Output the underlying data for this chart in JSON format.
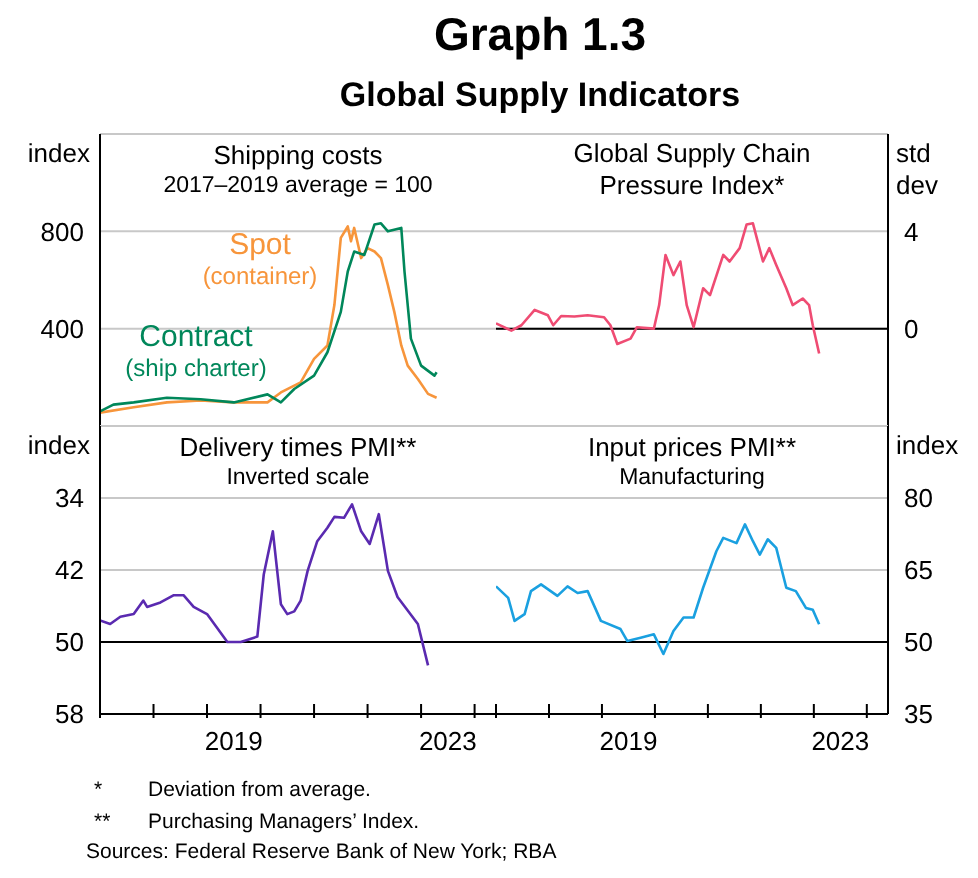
{
  "chart_data": [
    {
      "type": "other",
      "title": "Graph 1.3",
      "subtitle": "Global Supply Indicators",
      "annotations": [
        "* Deviation from average.",
        "** Purchasing Managers’ Index.",
        "Sources: Federal Reserve Bank of New York; RBA"
      ]
    },
    {
      "type": "line",
      "title": "Shipping costs",
      "subtitle": "2017–2019 average = 100",
      "ylabel": "index",
      "xlim": [
        2017,
        2024.4
      ],
      "ylim": [
        0,
        1200
      ],
      "yticks": [
        400,
        800
      ],
      "grid": "y",
      "tick_labels": "y",
      "series": [
        {
          "name": "Spot (container)",
          "color": "#f7953b",
          "x": [
            2017,
            2017.63,
            2018.25,
            2018.88,
            2019.5,
            2020.13,
            2020.38,
            2020.75,
            2021,
            2021.25,
            2021.38,
            2021.5,
            2021.63,
            2021.69,
            2021.75,
            2021.88,
            2022,
            2022.13,
            2022.25,
            2022.38,
            2022.5,
            2022.63,
            2022.75,
            2022.94,
            2023.13,
            2023.29
          ],
          "values": [
            55,
            77,
            97,
            105,
            97,
            97,
            138,
            179,
            276,
            331,
            497,
            773,
            820,
            759,
            814,
            690,
            731,
            717,
            690,
            579,
            469,
            331,
            248,
            193,
            132,
            116
          ]
        },
        {
          "name": "Contract (ship charter)",
          "color": "#00875a",
          "x": [
            2017,
            2017.25,
            2017.63,
            2018.25,
            2018.88,
            2019.5,
            2020.13,
            2020.38,
            2020.63,
            2021,
            2021.25,
            2021.5,
            2021.63,
            2021.75,
            2021.94,
            2022.13,
            2022.25,
            2022.38,
            2022.63,
            2022.69,
            2022.81,
            2023,
            2023.25,
            2023.29
          ],
          "values": [
            60,
            88,
            97,
            116,
            110,
            97,
            130,
            97,
            152,
            207,
            303,
            469,
            635,
            717,
            703,
            828,
            833,
            800,
            814,
            635,
            359,
            248,
            207,
            221
          ]
        }
      ]
    },
    {
      "type": "line",
      "title": "Global Supply Chain Pressure Index*",
      "ylabel": "std dev",
      "xlim": [
        2017,
        2024.4
      ],
      "ylim": [
        -4,
        8
      ],
      "yticks": [
        0,
        4
      ],
      "grid": "y",
      "tick_labels": "y",
      "ref_lines": [
        {
          "axis": "y",
          "value": 0,
          "color": "#000000"
        }
      ],
      "series": [
        {
          "color": "#ef4c73",
          "x": [
            2017,
            2017.29,
            2017.48,
            2017.73,
            2017.98,
            2018.08,
            2018.23,
            2018.48,
            2018.73,
            2019.04,
            2019.16,
            2019.29,
            2019.54,
            2019.66,
            2019.98,
            2020.08,
            2020.2,
            2020.35,
            2020.48,
            2020.6,
            2020.73,
            2020.91,
            2021.04,
            2021.29,
            2021.41,
            2021.6,
            2021.73,
            2021.85,
            2022.04,
            2022.16,
            2022.29,
            2022.48,
            2022.6,
            2022.79,
            2022.91,
            2022.98,
            2023.1
          ],
          "values": [
            0.22,
            -0.08,
            0.14,
            0.77,
            0.55,
            0.14,
            0.52,
            0.5,
            0.55,
            0.47,
            0.14,
            -0.63,
            -0.41,
            0.06,
            0,
            0.97,
            3.03,
            2.2,
            2.76,
            0.97,
            0.06,
            1.66,
            1.38,
            3.03,
            2.76,
            3.31,
            4.28,
            4.33,
            2.76,
            3.31,
            2.62,
            1.66,
            0.97,
            1.24,
            0.97,
            0.14,
            -1.02
          ]
        }
      ]
    },
    {
      "type": "line",
      "title": "Delivery times PMI**",
      "subtitle": "Inverted scale",
      "ylabel": "index",
      "xlim": [
        2017,
        2024.4
      ],
      "xticks": [
        {
          "value": 2017,
          "label": null
        },
        {
          "value": 2018,
          "label": null
        },
        {
          "value": 2019,
          "label": null
        },
        {
          "value": 2019.5,
          "label": "2019"
        },
        {
          "value": 2020,
          "label": null
        },
        {
          "value": 2021,
          "label": null
        },
        {
          "value": 2022,
          "label": null
        },
        {
          "value": 2023,
          "label": null
        },
        {
          "value": 2023.5,
          "label": "2023"
        },
        {
          "value": 2024,
          "label": null
        }
      ],
      "ylim": [
        58,
        26
      ],
      "yticks": [
        34,
        42,
        50,
        58
      ],
      "grid": "y",
      "ref_lines": [
        {
          "axis": "y",
          "value": 50,
          "color": "#000000"
        }
      ],
      "series": [
        {
          "color": "#5a2ab0",
          "x": [
            2017,
            2017.19,
            2017.38,
            2017.63,
            2017.81,
            2017.88,
            2018.13,
            2018.38,
            2018.56,
            2018.75,
            2019,
            2019.38,
            2019.63,
            2019.94,
            2020.06,
            2020.23,
            2020.38,
            2020.5,
            2020.63,
            2020.75,
            2020.88,
            2021.06,
            2021.25,
            2021.38,
            2021.56,
            2021.71,
            2021.88,
            2022.04,
            2022.21,
            2022.38,
            2022.56,
            2022.75,
            2022.94,
            2023.13
          ],
          "values": [
            47.6,
            48,
            47.2,
            46.9,
            45.4,
            46.1,
            45.6,
            44.8,
            44.8,
            46.1,
            46.9,
            50,
            50,
            49.4,
            42.5,
            37.7,
            45.8,
            46.9,
            46.6,
            45.4,
            42.1,
            38.8,
            37.3,
            36.1,
            36.2,
            34.7,
            37.7,
            39.1,
            35.8,
            42.1,
            45,
            46.5,
            48,
            52.6
          ]
        }
      ]
    },
    {
      "type": "line",
      "title": "Input prices PMI**",
      "subtitle": "Manufacturing",
      "ylabel": "index",
      "xlim": [
        2017,
        2024.4
      ],
      "xticks": [
        {
          "value": 2017,
          "label": null
        },
        {
          "value": 2018,
          "label": null
        },
        {
          "value": 2019,
          "label": null
        },
        {
          "value": 2019.5,
          "label": "2019"
        },
        {
          "value": 2020,
          "label": null
        },
        {
          "value": 2021,
          "label": null
        },
        {
          "value": 2022,
          "label": null
        },
        {
          "value": 2023,
          "label": null
        },
        {
          "value": 2023.5,
          "label": "2023"
        },
        {
          "value": 2024,
          "label": null
        }
      ],
      "ylim": [
        35,
        95
      ],
      "yticks": [
        35,
        50,
        65,
        80
      ],
      "grid": "y",
      "ref_lines": [
        {
          "axis": "y",
          "value": 50,
          "color": "#000000"
        }
      ],
      "series": [
        {
          "color": "#1aa0e0",
          "x": [
            2017,
            2017.23,
            2017.35,
            2017.54,
            2017.66,
            2017.85,
            2018.16,
            2018.35,
            2018.54,
            2018.73,
            2018.98,
            2019.35,
            2019.48,
            2019.73,
            2019.98,
            2020.16,
            2020.35,
            2020.54,
            2020.73,
            2020.91,
            2021.16,
            2021.29,
            2021.54,
            2021.7,
            2021.85,
            2021.98,
            2022.13,
            2022.29,
            2022.48,
            2022.66,
            2022.85,
            2022.98,
            2023.1
          ],
          "values": [
            61.6,
            59.2,
            54.4,
            55.8,
            60.6,
            62,
            59.6,
            61.6,
            60.2,
            60.6,
            54.4,
            52.7,
            50.2,
            50.9,
            51.6,
            47.5,
            52.3,
            55.1,
            55.1,
            61.3,
            68.9,
            71.7,
            70.6,
            74.5,
            71,
            68.2,
            71.4,
            69.6,
            61.3,
            60.6,
            57.1,
            56.7,
            53.7
          ]
        }
      ]
    }
  ]
}
